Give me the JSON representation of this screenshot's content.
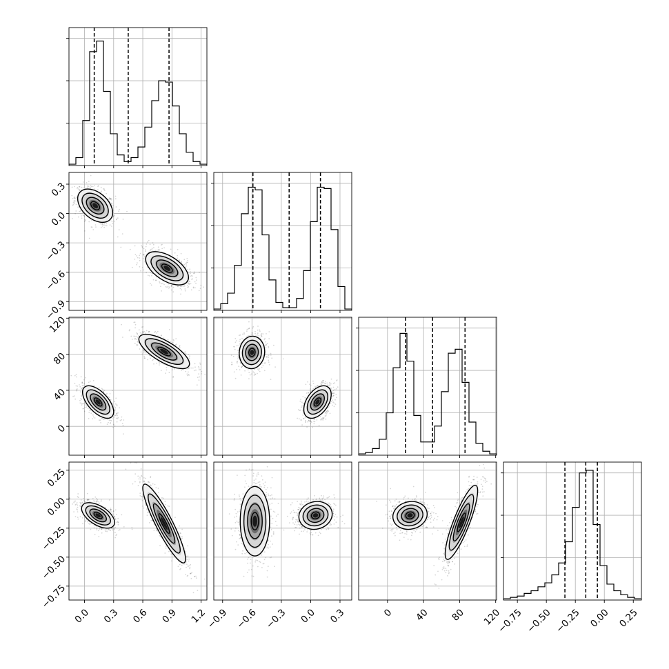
{
  "chart_data": {
    "type": "corner",
    "parameters": [
      {
        "index": 0,
        "range": [
          -0.16,
          1.26
        ],
        "ticks": [
          0.0,
          0.3,
          0.6,
          0.9,
          1.2
        ],
        "tick_labels": [
          "0.0",
          "0.3",
          "0.6",
          "0.9",
          "1.2"
        ],
        "quantiles": [
          0.1,
          0.45,
          0.87
        ],
        "hist": {
          "edges": [
            -0.16,
            -0.089,
            -0.018,
            0.053,
            0.124,
            0.195,
            0.266,
            0.337,
            0.408,
            0.479,
            0.55,
            0.621,
            0.692,
            0.763,
            0.834,
            0.905,
            0.976,
            1.047,
            1.118,
            1.189,
            1.26
          ],
          "counts": [
            0.01,
            0.06,
            0.34,
            0.86,
            0.94,
            0.56,
            0.24,
            0.08,
            0.03,
            0.06,
            0.14,
            0.29,
            0.49,
            0.64,
            0.63,
            0.45,
            0.24,
            0.1,
            0.03,
            0.01
          ]
        }
      },
      {
        "index": 1,
        "range": [
          -0.99,
          0.42
        ],
        "ticks": [
          -0.9,
          -0.6,
          -0.3,
          0.0,
          0.3
        ],
        "tick_labels": [
          "−0.9",
          "−0.6",
          "−0.3",
          "0.0",
          "0.3"
        ],
        "quantiles": [
          -0.59,
          -0.22,
          0.1
        ],
        "hist": {
          "edges": [
            -0.99,
            -0.9195,
            -0.849,
            -0.7785,
            -0.708,
            -0.6375,
            -0.567,
            -0.4965,
            -0.426,
            -0.3555,
            -0.285,
            -0.2145,
            -0.144,
            -0.0735,
            -0.003,
            0.0675,
            0.138,
            0.2085,
            0.279,
            0.3495,
            0.42
          ],
          "counts": [
            0.01,
            0.05,
            0.13,
            0.34,
            0.73,
            0.93,
            0.91,
            0.57,
            0.23,
            0.06,
            0.02,
            0.02,
            0.09,
            0.3,
            0.67,
            0.93,
            0.92,
            0.61,
            0.18,
            0.01
          ]
        }
      },
      {
        "index": 2,
        "range": [
          -32,
          121
        ],
        "ticks": [
          0,
          40,
          80,
          120
        ],
        "tick_labels": [
          "0",
          "40",
          "80",
          "120"
        ],
        "quantiles": [
          20,
          50,
          86
        ],
        "hist": {
          "edges": [
            -32,
            -24.35,
            -16.7,
            -9.05,
            -1.4,
            6.25,
            13.9,
            21.55,
            29.2,
            36.85,
            44.5,
            52.15,
            59.8,
            67.45,
            75.1,
            82.75,
            90.4,
            98.05,
            105.7,
            113.35,
            121
          ],
          "counts": [
            0.01,
            0.02,
            0.05,
            0.12,
            0.32,
            0.66,
            0.92,
            0.71,
            0.3,
            0.1,
            0.1,
            0.22,
            0.48,
            0.77,
            0.8,
            0.55,
            0.25,
            0.09,
            0.03,
            0.01
          ]
        }
      },
      {
        "index": 3,
        "range": [
          -0.87,
          0.32
        ],
        "ticks": [
          -0.75,
          -0.5,
          -0.25,
          0.0,
          0.25
        ],
        "tick_labels": [
          "−0.75",
          "−0.50",
          "−0.25",
          "0.00",
          "0.25"
        ],
        "quantiles": [
          -0.34,
          -0.16,
          -0.06
        ],
        "hist": {
          "edges": [
            -0.87,
            -0.8105,
            -0.751,
            -0.6915,
            -0.632,
            -0.5725,
            -0.513,
            -0.4535,
            -0.394,
            -0.3345,
            -0.275,
            -0.2155,
            -0.156,
            -0.0965,
            -0.037,
            0.0225,
            0.082,
            0.1415,
            0.201,
            0.2605,
            0.32
          ],
          "counts": [
            0.01,
            0.02,
            0.03,
            0.05,
            0.07,
            0.1,
            0.13,
            0.19,
            0.28,
            0.44,
            0.7,
            0.96,
            0.98,
            0.57,
            0.26,
            0.12,
            0.07,
            0.04,
            0.02,
            0.01
          ]
        }
      }
    ],
    "pair_panels": [
      {
        "x": 0,
        "y": 1,
        "clusters": [
          {
            "center": [
              0.11,
              0.08
            ],
            "sd": [
              0.09,
              0.085
            ],
            "rho": -0.42
          },
          {
            "center": [
              0.85,
              -0.56
            ],
            "sd": [
              0.11,
              0.085
            ],
            "rho": -0.55
          }
        ]
      },
      {
        "x": 0,
        "y": 2,
        "clusters": [
          {
            "center": [
              0.14,
              27
            ],
            "sd": [
              0.08,
              9
            ],
            "rho": -0.6
          },
          {
            "center": [
              0.82,
              83
            ],
            "sd": [
              0.13,
              9.5
            ],
            "rho": -0.72
          }
        ]
      },
      {
        "x": 1,
        "y": 2,
        "clusters": [
          {
            "center": [
              -0.6,
              82
            ],
            "sd": [
              0.065,
              9
            ],
            "rho": 0.05
          },
          {
            "center": [
              0.07,
              27
            ],
            "sd": [
              0.07,
              9
            ],
            "rho": 0.45
          }
        ]
      },
      {
        "x": 0,
        "y": 3,
        "clusters": [
          {
            "center": [
              0.14,
              -0.14
            ],
            "sd": [
              0.085,
              0.055
            ],
            "rho": -0.55
          },
          {
            "center": [
              0.82,
              -0.21
            ],
            "sd": [
              0.11,
              0.17
            ],
            "rho": -0.9
          }
        ]
      },
      {
        "x": 1,
        "y": 3,
        "clusters": [
          {
            "center": [
              -0.57,
              -0.19
            ],
            "sd": [
              0.075,
              0.15
            ],
            "rho": 0.0
          },
          {
            "center": [
              0.05,
              -0.14
            ],
            "sd": [
              0.085,
              0.06
            ],
            "rho": 0.1
          }
        ]
      },
      {
        "x": 2,
        "y": 3,
        "clusters": [
          {
            "center": [
              25,
              -0.14
            ],
            "sd": [
              9.5,
              0.06
            ],
            "rho": 0.1
          },
          {
            "center": [
              82,
              -0.2
            ],
            "sd": [
              9,
              0.16
            ],
            "rho": 0.85
          }
        ]
      }
    ],
    "contour_levels_sigma": [
      0.5,
      1.0,
      1.5,
      2.0
    ],
    "grid": true
  }
}
